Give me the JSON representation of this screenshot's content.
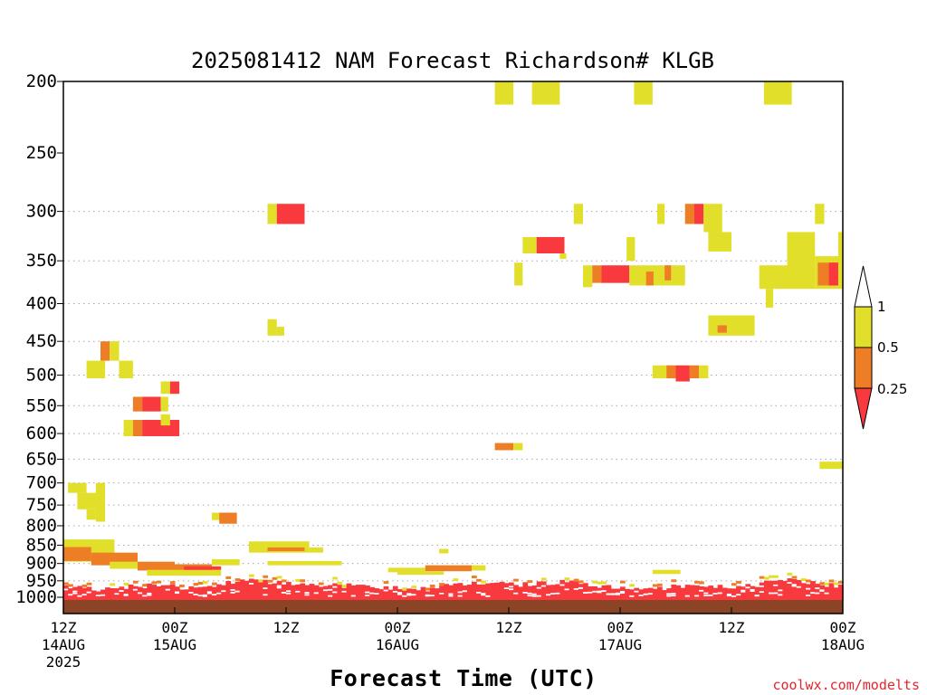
{
  "chart_data": {
    "type": "heatmap",
    "title": "2025081412 NAM Forecast Richardson# KLGB",
    "xlabel": "Forecast Time (UTC)",
    "credit": "coolwx.com/modelts",
    "y_axis": {
      "scale": "log",
      "range": [
        1000,
        200
      ],
      "ticks": [
        200,
        250,
        300,
        350,
        400,
        450,
        500,
        550,
        600,
        650,
        700,
        750,
        800,
        850,
        900,
        950,
        1000
      ],
      "grid_levels": [
        300,
        350,
        400,
        450,
        500,
        550,
        600,
        650,
        700,
        750,
        800,
        850,
        900,
        950
      ]
    },
    "x_axis": {
      "range_hours": [
        0,
        84
      ],
      "ticks": [
        {
          "hour": 0,
          "lines": [
            "12Z",
            "14AUG",
            "2025"
          ]
        },
        {
          "hour": 12,
          "lines": [
            "00Z",
            "15AUG"
          ]
        },
        {
          "hour": 24,
          "lines": [
            "12Z"
          ]
        },
        {
          "hour": 36,
          "lines": [
            "00Z",
            "16AUG"
          ]
        },
        {
          "hour": 48,
          "lines": [
            "12Z"
          ]
        },
        {
          "hour": 60,
          "lines": [
            "00Z",
            "17AUG"
          ]
        },
        {
          "hour": 72,
          "lines": [
            "12Z"
          ]
        },
        {
          "hour": 84,
          "lines": [
            "00Z",
            "18AUG"
          ]
        }
      ]
    },
    "legend": {
      "placement": "right",
      "levels": [
        {
          "label": "1",
          "color": "#ffffff"
        },
        {
          "label": "0.5",
          "color": "#e2df2a"
        },
        {
          "label": "0.25",
          "color": "#ee7e26"
        },
        {
          "label": "",
          "color": "#f8393e"
        }
      ]
    },
    "colors": {
      "lt_025": "#f8393e",
      "025_05": "#ee7e26",
      "05_1": "#e2df2a",
      "ground": "#8b4426"
    },
    "cells": [
      {
        "h": [
          46.5,
          48.5
        ],
        "p": [
          200,
          215
        ],
        "c": 1
      },
      {
        "h": [
          47,
          47.8
        ],
        "p": [
          200,
          205
        ],
        "c": 1
      },
      {
        "h": [
          50.5,
          53.5
        ],
        "p": [
          200,
          215
        ],
        "c": 1
      },
      {
        "h": [
          61.5,
          63.5
        ],
        "p": [
          200,
          215
        ],
        "c": 1
      },
      {
        "h": [
          61.8,
          62.6
        ],
        "p": [
          200,
          205
        ],
        "c": 1
      },
      {
        "h": [
          75.5,
          78.5
        ],
        "p": [
          200,
          215
        ],
        "c": 1
      },
      {
        "h": [
          76.5,
          77.2
        ],
        "p": [
          200,
          205
        ],
        "c": 1
      },
      {
        "h": [
          22,
          23
        ],
        "p": [
          293,
          312
        ],
        "c": 1
      },
      {
        "h": [
          23,
          26
        ],
        "p": [
          293,
          312
        ],
        "c": 3
      },
      {
        "h": [
          55,
          56
        ],
        "p": [
          293,
          312
        ],
        "c": 1
      },
      {
        "h": [
          64,
          64.8
        ],
        "p": [
          293,
          312
        ],
        "c": 1
      },
      {
        "h": [
          67,
          68
        ],
        "p": [
          293,
          312
        ],
        "c": 2
      },
      {
        "h": [
          68,
          69
        ],
        "p": [
          293,
          312
        ],
        "c": 3
      },
      {
        "h": [
          69,
          71
        ],
        "p": [
          293,
          320
        ],
        "c": 1
      },
      {
        "h": [
          69.5,
          72
        ],
        "p": [
          320,
          340
        ],
        "c": 1
      },
      {
        "h": [
          81,
          82
        ],
        "p": [
          293,
          312
        ],
        "c": 1
      },
      {
        "h": [
          78,
          81
        ],
        "p": [
          320,
          350
        ],
        "c": 1
      },
      {
        "h": [
          49.5,
          51
        ],
        "p": [
          325,
          342
        ],
        "c": 1
      },
      {
        "h": [
          51,
          54
        ],
        "p": [
          325,
          342
        ],
        "c": 3
      },
      {
        "h": [
          53.5,
          54.2
        ],
        "p": [
          342,
          348
        ],
        "c": 1
      },
      {
        "h": [
          60.7,
          61.6
        ],
        "p": [
          325,
          350
        ],
        "c": 1
      },
      {
        "h": [
          48.6,
          49.5
        ],
        "p": [
          352,
          378
        ],
        "c": 1
      },
      {
        "h": [
          56,
          57
        ],
        "p": [
          355,
          380
        ],
        "c": 1
      },
      {
        "h": [
          57,
          58
        ],
        "p": [
          355,
          375
        ],
        "c": 2
      },
      {
        "h": [
          58,
          61
        ],
        "p": [
          355,
          375
        ],
        "c": 3
      },
      {
        "h": [
          61,
          64
        ],
        "p": [
          355,
          378
        ],
        "c": 1
      },
      {
        "h": [
          62.8,
          63.6
        ],
        "p": [
          362,
          378
        ],
        "c": 2
      },
      {
        "h": [
          64,
          65.5
        ],
        "p": [
          355,
          378
        ],
        "c": 1
      },
      {
        "h": [
          64.8,
          65.5
        ],
        "p": [
          355,
          372
        ],
        "c": 2
      },
      {
        "h": [
          65.5,
          67
        ],
        "p": [
          355,
          378
        ],
        "c": 1
      },
      {
        "h": [
          75,
          78
        ],
        "p": [
          355,
          382
        ],
        "c": 1
      },
      {
        "h": [
          75.7,
          76.5
        ],
        "p": [
          382,
          405
        ],
        "c": 1
      },
      {
        "h": [
          78,
          81
        ],
        "p": [
          340,
          382
        ],
        "c": 1
      },
      {
        "h": [
          81,
          84
        ],
        "p": [
          345,
          382
        ],
        "c": 1
      },
      {
        "h": [
          81.3,
          83.5
        ],
        "p": [
          352,
          378
        ],
        "c": 2
      },
      {
        "h": [
          82.5,
          83.5
        ],
        "p": [
          352,
          378
        ],
        "c": 3
      },
      {
        "h": [
          83.5,
          84
        ],
        "p": [
          320,
          352
        ],
        "c": 1
      },
      {
        "h": [
          22,
          23
        ],
        "p": [
          420,
          442
        ],
        "c": 1
      },
      {
        "h": [
          23,
          23.8
        ],
        "p": [
          430,
          442
        ],
        "c": 1
      },
      {
        "h": [
          69.5,
          74.5
        ],
        "p": [
          415,
          442
        ],
        "c": 1
      },
      {
        "h": [
          70.5,
          71.5
        ],
        "p": [
          428,
          438
        ],
        "c": 2
      },
      {
        "h": [
          4,
          5
        ],
        "p": [
          450,
          478
        ],
        "c": 2
      },
      {
        "h": [
          5,
          6
        ],
        "p": [
          450,
          478
        ],
        "c": 1
      },
      {
        "h": [
          2.5,
          4.5
        ],
        "p": [
          478,
          505
        ],
        "c": 1
      },
      {
        "h": [
          6,
          7.5
        ],
        "p": [
          478,
          505
        ],
        "c": 1
      },
      {
        "h": [
          63.5,
          65.5
        ],
        "p": [
          485,
          505
        ],
        "c": 1
      },
      {
        "h": [
          65,
          66
        ],
        "p": [
          485,
          505
        ],
        "c": 2
      },
      {
        "h": [
          66,
          67.5
        ],
        "p": [
          485,
          510
        ],
        "c": 3
      },
      {
        "h": [
          67.5,
          68.5
        ],
        "p": [
          485,
          505
        ],
        "c": 2
      },
      {
        "h": [
          68.5,
          69.5
        ],
        "p": [
          485,
          505
        ],
        "c": 1
      },
      {
        "h": [
          10.5,
          11.5
        ],
        "p": [
          510,
          530
        ],
        "c": 1
      },
      {
        "h": [
          11.5,
          12.5
        ],
        "p": [
          510,
          530
        ],
        "c": 3
      },
      {
        "h": [
          7.5,
          8.5
        ],
        "p": [
          535,
          560
        ],
        "c": 2
      },
      {
        "h": [
          8.5,
          10.5
        ],
        "p": [
          535,
          560
        ],
        "c": 3
      },
      {
        "h": [
          10.5,
          11.3
        ],
        "p": [
          535,
          560
        ],
        "c": 1
      },
      {
        "h": [
          6.5,
          7.5
        ],
        "p": [
          575,
          605
        ],
        "c": 1
      },
      {
        "h": [
          7.5,
          8.5
        ],
        "p": [
          575,
          605
        ],
        "c": 2
      },
      {
        "h": [
          8.5,
          12.5
        ],
        "p": [
          575,
          605
        ],
        "c": 3
      },
      {
        "h": [
          10.5,
          11.5
        ],
        "p": [
          565,
          585
        ],
        "c": 1
      },
      {
        "h": [
          46.5,
          48.5
        ],
        "p": [
          618,
          632
        ],
        "c": 2
      },
      {
        "h": [
          48.5,
          49.5
        ],
        "p": [
          618,
          632
        ],
        "c": 1
      },
      {
        "h": [
          81.5,
          84
        ],
        "p": [
          655,
          670
        ],
        "c": 1
      },
      {
        "h": [
          0.5,
          2.5
        ],
        "p": [
          700,
          722
        ],
        "c": 1
      },
      {
        "h": [
          1.5,
          4
        ],
        "p": [
          722,
          760
        ],
        "c": 1
      },
      {
        "h": [
          3.5,
          4.5
        ],
        "p": [
          700,
          790
        ],
        "c": 1
      },
      {
        "h": [
          2.5,
          3.5
        ],
        "p": [
          760,
          785
        ],
        "c": 1
      },
      {
        "h": [
          16,
          17
        ],
        "p": [
          768,
          786
        ],
        "c": 1
      },
      {
        "h": [
          16.8,
          18.7
        ],
        "p": [
          768,
          795
        ],
        "c": 2
      },
      {
        "h": [
          20,
          26.5
        ],
        "p": [
          840,
          870
        ],
        "c": 1
      },
      {
        "h": [
          22,
          26
        ],
        "p": [
          856,
          866
        ],
        "c": 2
      },
      {
        "h": [
          26.5,
          28
        ],
        "p": [
          856,
          870
        ],
        "c": 1
      },
      {
        "h": [
          40.5,
          41.5
        ],
        "p": [
          860,
          872
        ],
        "c": 1
      },
      {
        "h": [
          0,
          5.5
        ],
        "p": [
          835,
          895
        ],
        "c": 1
      },
      {
        "h": [
          0,
          3
        ],
        "p": [
          855,
          893
        ],
        "c": 2
      },
      {
        "h": [
          3,
          8
        ],
        "p": [
          870,
          905
        ],
        "c": 2
      },
      {
        "h": [
          5,
          9
        ],
        "p": [
          895,
          915
        ],
        "c": 1
      },
      {
        "h": [
          8,
          12
        ],
        "p": [
          895,
          920
        ],
        "c": 2
      },
      {
        "h": [
          12,
          16
        ],
        "p": [
          902,
          925
        ],
        "c": 2
      },
      {
        "h": [
          9,
          17
        ],
        "p": [
          918,
          935
        ],
        "c": 1
      },
      {
        "h": [
          13,
          17
        ],
        "p": [
          908,
          918
        ],
        "c": 3
      },
      {
        "h": [
          16,
          19
        ],
        "p": [
          888,
          905
        ],
        "c": 1
      },
      {
        "h": [
          22,
          30
        ],
        "p": [
          893,
          905
        ],
        "c": 1
      },
      {
        "h": [
          35,
          39
        ],
        "p": [
          912,
          925
        ],
        "c": 1
      },
      {
        "h": [
          39,
          44
        ],
        "p": [
          905,
          922
        ],
        "c": 2
      },
      {
        "h": [
          44,
          45.5
        ],
        "p": [
          905,
          920
        ],
        "c": 1
      },
      {
        "h": [
          36,
          41
        ],
        "p": [
          922,
          932
        ],
        "c": 1
      },
      {
        "h": [
          63.5,
          66.5
        ],
        "p": [
          918,
          930
        ],
        "c": 1
      }
    ],
    "surface_band": {
      "p": [
        945,
        1000
      ],
      "layers": [
        "#f8393e",
        "#ee7e26",
        "#e2df2a"
      ]
    }
  }
}
